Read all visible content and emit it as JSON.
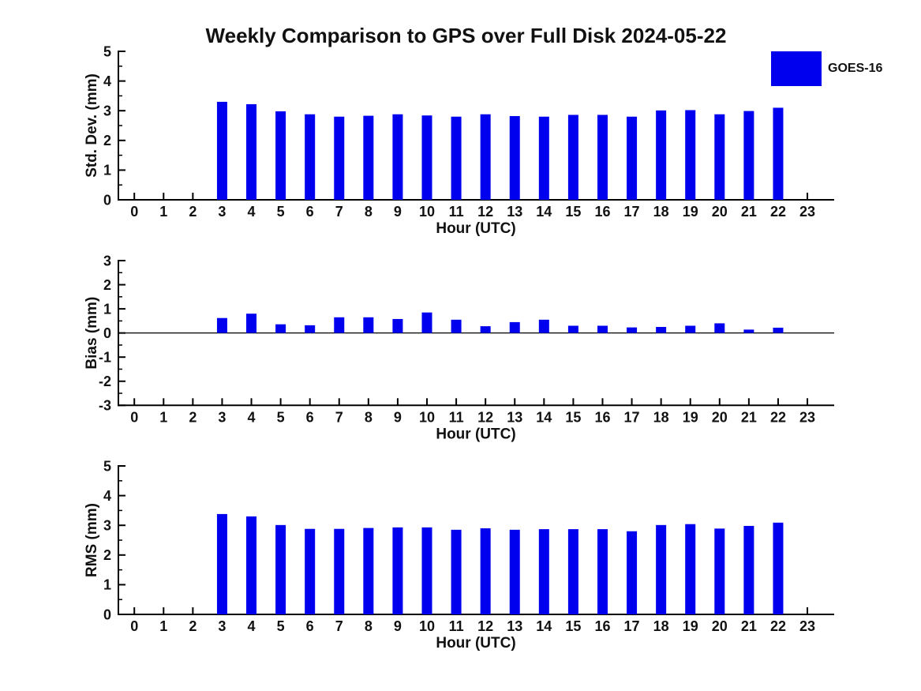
{
  "title": "Weekly Comparison to GPS over Full Disk 2024-05-22",
  "legend": {
    "label": "GOES-16",
    "color": "#0000EE"
  },
  "colors": {
    "bar": "#0000EE",
    "axis": "#000000",
    "background": "#FFFFFF",
    "text": "#111111"
  },
  "chart_data": [
    {
      "type": "bar",
      "panel": "std-dev",
      "series_name": "GOES-16",
      "xlabel": "Hour (UTC)",
      "ylabel": "Std. Dev. (mm)",
      "categories": [
        0,
        1,
        2,
        3,
        4,
        5,
        6,
        7,
        8,
        9,
        10,
        11,
        12,
        13,
        14,
        15,
        16,
        17,
        18,
        19,
        20,
        21,
        22,
        23
      ],
      "values": [
        null,
        null,
        null,
        3.3,
        3.22,
        2.98,
        2.88,
        2.8,
        2.83,
        2.88,
        2.84,
        2.8,
        2.88,
        2.82,
        2.8,
        2.86,
        2.86,
        2.8,
        3.01,
        3.02,
        2.88,
        2.99,
        3.1,
        null
      ],
      "ylim": [
        0,
        5
      ],
      "yticks": [
        0,
        1,
        2,
        3,
        4,
        5
      ],
      "grid": false,
      "legend_position": "top-right"
    },
    {
      "type": "bar",
      "panel": "bias",
      "series_name": "GOES-16",
      "xlabel": "Hour (UTC)",
      "ylabel": "Bias (mm)",
      "categories": [
        0,
        1,
        2,
        3,
        4,
        5,
        6,
        7,
        8,
        9,
        10,
        11,
        12,
        13,
        14,
        15,
        16,
        17,
        18,
        19,
        20,
        21,
        22,
        23
      ],
      "values": [
        null,
        null,
        null,
        0.62,
        0.8,
        0.36,
        0.32,
        0.65,
        0.65,
        0.58,
        0.85,
        0.55,
        0.28,
        0.45,
        0.55,
        0.3,
        0.3,
        0.23,
        0.25,
        0.3,
        0.4,
        0.14,
        0.22,
        null
      ],
      "ylim": [
        -3,
        3
      ],
      "yticks": [
        -3,
        -2,
        -1,
        0,
        1,
        2,
        3
      ],
      "grid": false,
      "zero_line": true
    },
    {
      "type": "bar",
      "panel": "rms",
      "series_name": "GOES-16",
      "xlabel": "Hour (UTC)",
      "ylabel": "RMS (mm)",
      "categories": [
        0,
        1,
        2,
        3,
        4,
        5,
        6,
        7,
        8,
        9,
        10,
        11,
        12,
        13,
        14,
        15,
        16,
        17,
        18,
        19,
        20,
        21,
        22,
        23
      ],
      "values": [
        null,
        null,
        null,
        3.38,
        3.3,
        3.01,
        2.88,
        2.88,
        2.91,
        2.93,
        2.93,
        2.85,
        2.9,
        2.85,
        2.87,
        2.87,
        2.87,
        2.8,
        3.01,
        3.04,
        2.89,
        2.98,
        3.09,
        null
      ],
      "ylim": [
        0,
        5
      ],
      "yticks": [
        0,
        1,
        2,
        3,
        4,
        5
      ],
      "grid": false
    }
  ]
}
